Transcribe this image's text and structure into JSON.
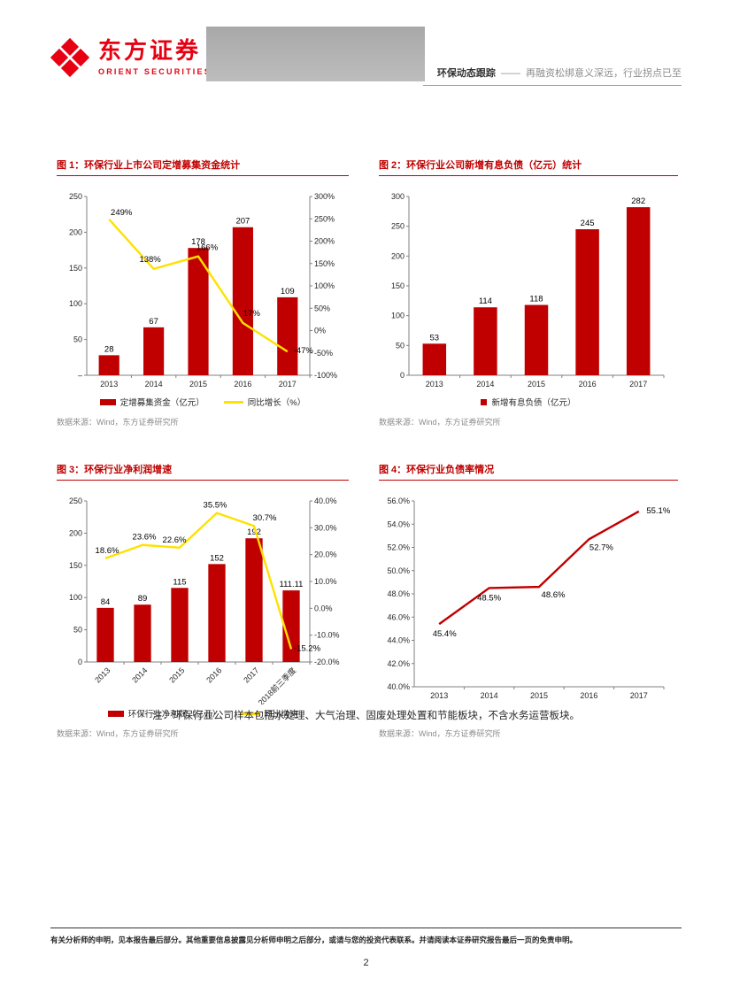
{
  "brand": {
    "name_cn": "东方证券",
    "name_en": "ORIENT SECURITIES",
    "logo_color": "#E60012"
  },
  "header": {
    "section": "环保动态跟踪",
    "separator": "——",
    "subtitle": "再融资松绑意义深远，行业拐点已至"
  },
  "note": "注：环保行业公司样本包括水处理、大气治理、固废处理处置和节能板块，不含水务运营板块。",
  "footer": {
    "disclaimer": "有关分析师的申明，见本报告最后部分。其他重要信息披露见分析师申明之后部分，或请与您的投资代表联系。并请阅读本证券研究报告最后一页的免责申明。",
    "page_number": "2"
  },
  "colors": {
    "accent_red": "#C00000",
    "line_yellow": "#FFE100",
    "logo_red": "#E60012"
  },
  "chart_data": [
    {
      "type": "bar+line",
      "title": "图 1：环保行业上市公司定增募集资金统计",
      "source": "数据来源：Wind，东方证券研究所",
      "categories": [
        "2013",
        "2014",
        "2015",
        "2016",
        "2017"
      ],
      "ml": 34,
      "mr": 44,
      "bar_width": 0.46,
      "left_axis": {
        "min": 0,
        "max": 250,
        "ticks": [
          "250",
          "200",
          "150",
          "100",
          "50",
          "–"
        ]
      },
      "right_axis": {
        "min": -100,
        "max": 300,
        "ticks": [
          "300%",
          "250%",
          "200%",
          "150%",
          "100%",
          "50%",
          "0%",
          "-50%",
          "-100%"
        ]
      },
      "series": [
        {
          "name": "定增募集资金（亿元）",
          "type": "bar",
          "axis": "left",
          "color": "#C00000",
          "legend_swatch": "rect",
          "values": [
            28,
            67,
            178,
            207,
            109
          ],
          "labels": [
            "28",
            "67",
            "178",
            "207",
            "109"
          ]
        },
        {
          "name": "同比增长（%）",
          "type": "line",
          "axis": "right",
          "color": "#FFE100",
          "legend_swatch": "line",
          "values": [
            249,
            138,
            166,
            17,
            -47
          ],
          "labels": [
            "249%",
            "138%",
            "166%",
            "17%",
            "-47%"
          ],
          "label_dx": [
            14,
            -4,
            10,
            10,
            18
          ],
          "label_dy": [
            -5,
            -8,
            -7,
            -8,
            2
          ]
        }
      ]
    },
    {
      "type": "bar",
      "title": "图 2：环保行业公司新增有息负债（亿元）统计",
      "source": "数据来源：Wind，东方证券研究所",
      "categories": [
        "2013",
        "2014",
        "2015",
        "2016",
        "2017"
      ],
      "ml": 34,
      "mr": 16,
      "bar_width": 0.46,
      "left_axis": {
        "min": 0,
        "max": 300,
        "ticks": [
          "300",
          "250",
          "200",
          "150",
          "100",
          "50",
          "0"
        ]
      },
      "series": [
        {
          "name": "新增有息负债（亿元）",
          "type": "bar",
          "axis": "left",
          "color": "#C00000",
          "legend_swatch": "square",
          "values": [
            53,
            114,
            118,
            245,
            282
          ],
          "labels": [
            "53",
            "114",
            "118",
            "245",
            "282"
          ]
        }
      ]
    },
    {
      "type": "bar+line",
      "title": "图 3：环保行业净利润增速",
      "source": "数据来源：Wind，东方证券研究所",
      "categories": [
        "2013",
        "2014",
        "2015",
        "2016",
        "2017",
        "2018前三季度"
      ],
      "rotate_x_labels": true,
      "ml": 34,
      "mr": 44,
      "bar_width": 0.46,
      "left_axis": {
        "min": 0,
        "max": 250,
        "ticks": [
          "250",
          "200",
          "150",
          "100",
          "50",
          "0"
        ]
      },
      "right_axis": {
        "min": -20,
        "max": 40,
        "ticks": [
          "40.0%",
          "30.0%",
          "20.0%",
          "10.0%",
          "0.0%",
          "-10.0%",
          "-20.0%"
        ]
      },
      "series": [
        {
          "name": "环保行业净利润（亿元）",
          "type": "bar",
          "axis": "left",
          "color": "#C00000",
          "legend_swatch": "rect",
          "values": [
            84,
            89,
            115,
            152,
            192,
            111.11
          ],
          "labels": [
            "84",
            "89",
            "115",
            "152",
            "192",
            "111.11"
          ]
        },
        {
          "name": "同比增速",
          "type": "line",
          "axis": "right",
          "color": "#FFE100",
          "legend_swatch": "line",
          "values": [
            18.6,
            23.6,
            22.6,
            35.5,
            30.7,
            -15.2
          ],
          "labels": [
            "18.6%",
            "23.6%",
            "22.6%",
            "35.5%",
            "30.7%",
            "-15.2%"
          ],
          "label_dx": [
            2,
            2,
            -6,
            -2,
            12,
            18
          ],
          "label_dy": [
            -6,
            -6,
            -6,
            -6,
            -6,
            2
          ]
        }
      ]
    },
    {
      "type": "line",
      "title": "图 4：环保行业负债率情况",
      "source": "数据来源：Wind，东方证券研究所",
      "categories": [
        "2013",
        "2014",
        "2015",
        "2016",
        "2017"
      ],
      "ml": 40,
      "mr": 16,
      "show_legend": false,
      "left_axis": {
        "min": 40,
        "max": 56,
        "ticks": [
          "56.0%",
          "54.0%",
          "52.0%",
          "50.0%",
          "48.0%",
          "46.0%",
          "44.0%",
          "42.0%",
          "40.0%"
        ]
      },
      "series": [
        {
          "type": "line",
          "axis": "left",
          "color": "#C00000",
          "values": [
            45.4,
            48.5,
            48.6,
            52.7,
            55.1
          ],
          "labels": [
            "45.4%",
            "48.5%",
            "48.6%",
            "52.7%",
            "55.1%"
          ],
          "label_dx": [
            6,
            0,
            16,
            14,
            22
          ],
          "label_dy": [
            14,
            14,
            12,
            12,
            2
          ]
        }
      ]
    }
  ]
}
